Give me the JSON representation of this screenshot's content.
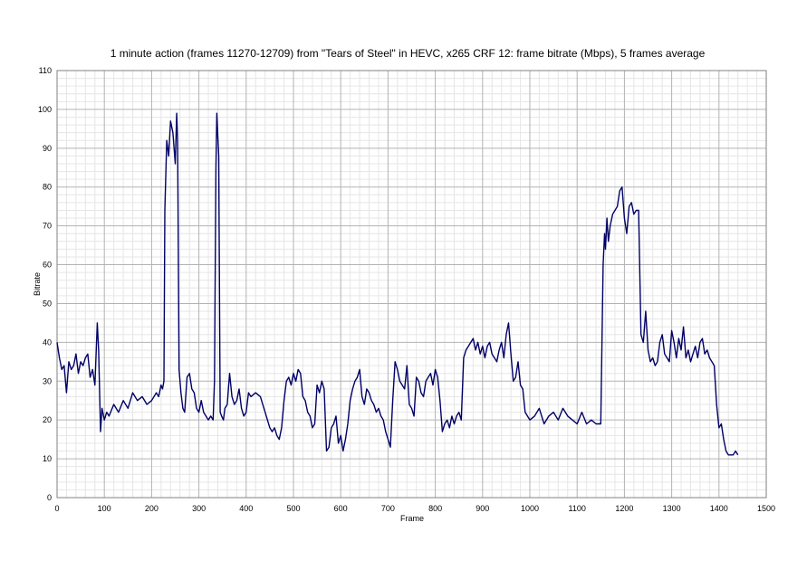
{
  "chart_data": {
    "type": "line",
    "title": "1 minute action (frames 11270-12709) from \"Tears of Steel\" in HEVC, x265 CRF 12: frame bitrate (Mbps), 5 frames average",
    "xlabel": "Frame",
    "ylabel": "Bitrate",
    "xlim": [
      0,
      1500
    ],
    "ylim": [
      0,
      110
    ],
    "x_major_step": 100,
    "y_major_step": 10,
    "x_minor_step": 20,
    "y_minor_step": 2,
    "grid": true,
    "legend": "none",
    "line_color": "#000066",
    "x_ticks": [
      "0",
      "100",
      "200",
      "300",
      "400",
      "500",
      "600",
      "700",
      "800",
      "900",
      "1000",
      "1100",
      "1200",
      "1300",
      "1400",
      "1500"
    ],
    "y_ticks": [
      "0",
      "10",
      "20",
      "30",
      "40",
      "50",
      "60",
      "70",
      "80",
      "90",
      "100",
      "110"
    ],
    "series": [
      {
        "x": [
          0,
          5,
          10,
          15,
          20,
          25,
          30,
          35,
          40,
          45,
          50,
          55,
          60,
          65,
          70,
          75,
          80,
          85,
          88,
          92,
          95,
          100,
          105,
          110,
          120,
          130,
          140,
          150,
          160,
          170,
          180,
          190,
          200,
          210,
          215,
          220,
          223,
          226,
          228,
          232,
          236,
          240,
          245,
          250,
          253,
          255,
          258,
          262,
          266,
          270,
          275,
          280,
          285,
          290,
          295,
          300,
          305,
          310,
          315,
          320,
          325,
          330,
          333,
          336,
          338,
          340,
          342,
          345,
          348,
          352,
          355,
          360,
          365,
          370,
          375,
          380,
          385,
          390,
          395,
          400,
          405,
          410,
          420,
          430,
          440,
          445,
          450,
          455,
          460,
          465,
          470,
          475,
          480,
          485,
          490,
          495,
          500,
          505,
          510,
          515,
          520,
          525,
          530,
          535,
          540,
          545,
          550,
          555,
          560,
          565,
          570,
          575,
          580,
          585,
          590,
          595,
          600,
          605,
          610,
          615,
          620,
          625,
          630,
          635,
          640,
          645,
          650,
          655,
          660,
          665,
          670,
          675,
          680,
          685,
          690,
          695,
          700,
          705,
          710,
          715,
          720,
          725,
          730,
          735,
          740,
          745,
          750,
          755,
          760,
          765,
          770,
          775,
          780,
          785,
          790,
          795,
          800,
          805,
          810,
          815,
          820,
          825,
          830,
          835,
          840,
          845,
          850,
          855,
          860,
          865,
          870,
          875,
          880,
          885,
          890,
          895,
          900,
          905,
          910,
          915,
          920,
          925,
          930,
          935,
          940,
          945,
          950,
          955,
          960,
          965,
          970,
          975,
          980,
          985,
          990,
          995,
          1000,
          1010,
          1020,
          1030,
          1040,
          1050,
          1060,
          1070,
          1080,
          1090,
          1100,
          1110,
          1120,
          1130,
          1140,
          1150,
          1155,
          1158,
          1160,
          1163,
          1166,
          1170,
          1175,
          1180,
          1185,
          1190,
          1195,
          1200,
          1205,
          1210,
          1215,
          1220,
          1225,
          1230,
          1235,
          1240,
          1245,
          1250,
          1255,
          1260,
          1265,
          1270,
          1275,
          1280,
          1285,
          1290,
          1295,
          1300,
          1305,
          1310,
          1315,
          1320,
          1325,
          1330,
          1335,
          1340,
          1345,
          1350,
          1355,
          1360,
          1365,
          1370,
          1375,
          1380,
          1385,
          1390,
          1395,
          1400,
          1405,
          1410,
          1415,
          1420,
          1425,
          1430,
          1435,
          1440
        ],
        "y": [
          40,
          36,
          33,
          34,
          27,
          35,
          33,
          34,
          37,
          32,
          35,
          34,
          36,
          37,
          31,
          33,
          29,
          45,
          38,
          17,
          23,
          20,
          22,
          21,
          24,
          22,
          25,
          23,
          27,
          25,
          26,
          24,
          25,
          27,
          26,
          29,
          28,
          30,
          74,
          92,
          88,
          97,
          94,
          86,
          99,
          92,
          33,
          27,
          23,
          22,
          31,
          32,
          28,
          27,
          23,
          22,
          25,
          22,
          21,
          20,
          21,
          20,
          30,
          85,
          99,
          93,
          88,
          22,
          21,
          20,
          23,
          24,
          32,
          26,
          24,
          25,
          28,
          23,
          21,
          22,
          27,
          26,
          27,
          26,
          22,
          20,
          18,
          17,
          18,
          16,
          15,
          18,
          25,
          30,
          31,
          29,
          32,
          30,
          33,
          32,
          26,
          25,
          22,
          21,
          18,
          19,
          29,
          27,
          30,
          28,
          12,
          13,
          18,
          19,
          21,
          14,
          16,
          12,
          15,
          19,
          25,
          28,
          30,
          31,
          33,
          26,
          24,
          28,
          27,
          25,
          24,
          22,
          23,
          21,
          20,
          17,
          15,
          13,
          25,
          35,
          33,
          30,
          29,
          28,
          34,
          24,
          23,
          21,
          31,
          30,
          27,
          26,
          30,
          31,
          32,
          29,
          33,
          31,
          25,
          17,
          19,
          20,
          18,
          21,
          19,
          21,
          22,
          20,
          36,
          38,
          39,
          40,
          41,
          38,
          40,
          37,
          39,
          36,
          39,
          40,
          37,
          36,
          35,
          38,
          40,
          36,
          42,
          45,
          37,
          30,
          31,
          35,
          29,
          28,
          22,
          21,
          20,
          21,
          23,
          19,
          21,
          22,
          20,
          23,
          21,
          20,
          19,
          22,
          19,
          20,
          19,
          19,
          60,
          68,
          64,
          72,
          66,
          70,
          73,
          74,
          75,
          79,
          80,
          72,
          68,
          75,
          76,
          73,
          74,
          74,
          42,
          40,
          48,
          38,
          35,
          36,
          34,
          35,
          40,
          42,
          37,
          36,
          35,
          43,
          40,
          36,
          41,
          38,
          44,
          36,
          38,
          35,
          37,
          39,
          36,
          40,
          41,
          37,
          38,
          36,
          35,
          34,
          24,
          18,
          19,
          15,
          12,
          11,
          11,
          11,
          12,
          11
        ]
      }
    ]
  }
}
